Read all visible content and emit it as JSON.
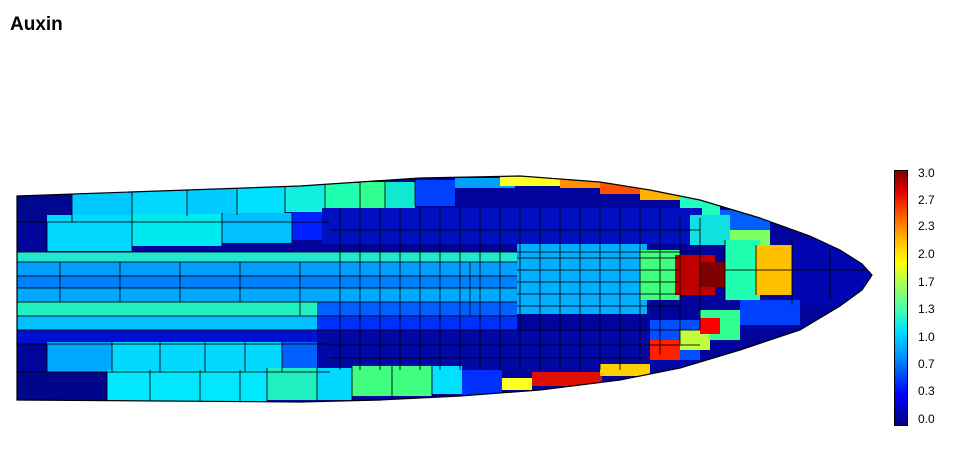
{
  "title": "Auxin",
  "colorbar": {
    "ticks": [
      "3.0",
      "2.7",
      "2.3",
      "2.0",
      "1.7",
      "1.3",
      "1.0",
      "0.7",
      "0.3",
      "0.0"
    ],
    "min": 0.0,
    "max": 3.0
  },
  "colors": {
    "cell_outline": "#000000",
    "low": "#00008f",
    "mid": "#00e5ff",
    "high": "#7f0000"
  }
}
